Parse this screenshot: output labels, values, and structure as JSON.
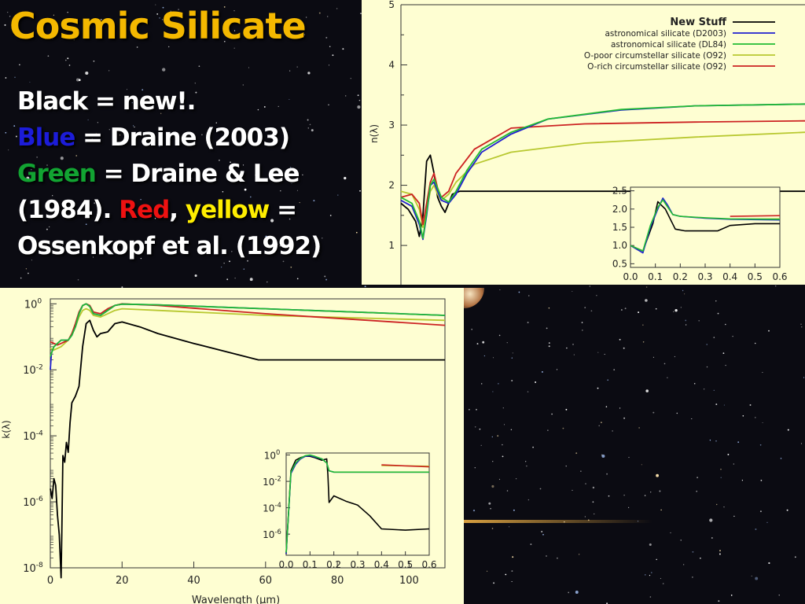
{
  "slide": {
    "title": "Cosmic Silicate",
    "legend": [
      [
        {
          "text": "Black",
          "color": "black-word"
        },
        {
          "text": " = new!.",
          "color": "white"
        }
      ],
      [
        {
          "text": "Blue",
          "color": "blue"
        },
        {
          "text": " = Draine (2003)",
          "color": "white"
        }
      ],
      [
        {
          "text": "Green",
          "color": "green"
        },
        {
          "text": " = Draine & Lee",
          "color": "white"
        }
      ],
      [
        {
          "text": "(1984).  ",
          "color": "white"
        },
        {
          "text": "Red",
          "color": "red"
        },
        {
          "text": ", ",
          "color": "white"
        },
        {
          "text": "yellow",
          "color": "yellow"
        },
        {
          "text": " =",
          "color": "white"
        }
      ],
      [
        {
          "text": "Ossenkopf et al. (1992)",
          "color": "white"
        }
      ]
    ],
    "colors": {
      "title": "#f4b800",
      "background": "#0b0b12",
      "plot_bg": "#fefed2"
    }
  },
  "chart_data": [
    {
      "type": "line",
      "id": "n",
      "ylabel": "n(λ)",
      "xlim": [
        0,
        110
      ],
      "ylim": [
        0.4,
        5
      ],
      "yticks": [
        1,
        2,
        3,
        4,
        5
      ],
      "legend_position": "top-right",
      "series": [
        {
          "name": "New Stuff",
          "color": "#000000",
          "x": [
            0,
            2,
            4,
            5,
            6,
            7,
            8,
            9,
            10,
            11,
            12,
            14,
            16,
            18,
            20,
            30,
            60,
            110
          ],
          "y": [
            1.7,
            1.6,
            1.4,
            1.15,
            1.5,
            2.4,
            2.5,
            2.2,
            1.8,
            1.65,
            1.55,
            1.85,
            1.9,
            1.9,
            1.9,
            1.9,
            1.9,
            1.9
          ]
        },
        {
          "name": "astronomical silicate (D2003)",
          "color": "#2020d0",
          "x": [
            0,
            3,
            5,
            6,
            7,
            8,
            9,
            10,
            11,
            13,
            15,
            18,
            22,
            30,
            40,
            60,
            80,
            110
          ],
          "y": [
            1.75,
            1.65,
            1.35,
            1.1,
            1.5,
            2.0,
            2.05,
            1.9,
            1.75,
            1.7,
            1.85,
            2.2,
            2.55,
            2.85,
            3.1,
            3.25,
            3.32,
            3.35
          ]
        },
        {
          "name": "astronomical silicate (DL84)",
          "color": "#22bb33",
          "x": [
            0,
            3,
            5,
            6,
            7,
            8,
            9,
            10,
            11,
            13,
            15,
            18,
            22,
            30,
            40,
            60,
            80,
            110
          ],
          "y": [
            1.8,
            1.7,
            1.4,
            1.12,
            1.55,
            2.0,
            2.1,
            1.95,
            1.8,
            1.72,
            1.9,
            2.25,
            2.6,
            2.88,
            3.1,
            3.26,
            3.32,
            3.35
          ]
        },
        {
          "name": "O-poor circumstellar silicate (O92)",
          "color": "#b8c830",
          "x": [
            0,
            3,
            5,
            6,
            7,
            8,
            9,
            10,
            11,
            13,
            15,
            20,
            30,
            50,
            80,
            110
          ],
          "y": [
            1.9,
            1.85,
            1.6,
            1.3,
            1.6,
            1.9,
            2.0,
            1.85,
            1.75,
            1.85,
            2.05,
            2.35,
            2.55,
            2.7,
            2.8,
            2.88
          ]
        },
        {
          "name": "O-rich circumstellar silicate (O92)",
          "color": "#cc2222",
          "x": [
            0,
            3,
            5,
            6,
            7,
            8,
            9,
            10,
            11,
            13,
            15,
            20,
            30,
            50,
            80,
            110
          ],
          "y": [
            1.8,
            1.85,
            1.7,
            1.35,
            1.7,
            2.05,
            2.2,
            1.95,
            1.8,
            1.9,
            2.2,
            2.6,
            2.95,
            3.02,
            3.05,
            3.07
          ]
        }
      ],
      "inset": {
        "xlim": [
          0,
          0.6
        ],
        "ylim": [
          0.4,
          2.6
        ],
        "xticks": [
          "0.0",
          "0.1",
          "0.2",
          "0.3",
          "0.4",
          "0.5",
          "0.6"
        ],
        "yticks": [
          "0.5",
          "1.0",
          "1.5",
          "2.0",
          "2.5"
        ],
        "series": [
          {
            "color": "#000000",
            "x": [
              0,
              0.05,
              0.09,
              0.11,
              0.14,
              0.18,
              0.22,
              0.25,
              0.35,
              0.4,
              0.5,
              0.6
            ],
            "y": [
              1.0,
              0.85,
              1.6,
              2.2,
              2.0,
              1.45,
              1.4,
              1.4,
              1.4,
              1.55,
              1.6,
              1.6
            ]
          },
          {
            "color": "#2020d0",
            "x": [
              0,
              0.05,
              0.08,
              0.11,
              0.13,
              0.15,
              0.17,
              0.2,
              0.3,
              0.4,
              0.6
            ],
            "y": [
              1.0,
              0.8,
              1.5,
              2.0,
              2.3,
              2.1,
              1.85,
              1.8,
              1.75,
              1.72,
              1.7
            ]
          },
          {
            "color": "#22bb33",
            "x": [
              0,
              0.05,
              0.08,
              0.11,
              0.13,
              0.15,
              0.17,
              0.2,
              0.3,
              0.4,
              0.6
            ],
            "y": [
              1.0,
              0.85,
              1.55,
              2.05,
              2.25,
              2.05,
              1.85,
              1.8,
              1.76,
              1.73,
              1.72
            ]
          },
          {
            "color": "#b8c830",
            "x": [
              0.4,
              0.6
            ],
            "y": [
              1.72,
              1.73
            ]
          },
          {
            "color": "#cc2222",
            "x": [
              0.4,
              0.6
            ],
            "y": [
              1.8,
              1.82
            ]
          }
        ]
      }
    },
    {
      "type": "line",
      "id": "k",
      "ylabel": "k(λ)",
      "xlabel": "Wavelength (μm)",
      "xlim": [
        0,
        110
      ],
      "ylim_log10": [
        -8,
        0.15
      ],
      "xticks": [
        0,
        20,
        40,
        60,
        80,
        100
      ],
      "yticks": [
        {
          "exp": 0,
          "label": "10",
          "sup": "0"
        },
        {
          "exp": -2,
          "label": "10",
          "sup": "-2"
        },
        {
          "exp": -4,
          "label": "10",
          "sup": "-4"
        },
        {
          "exp": -6,
          "label": "10",
          "sup": "-6"
        },
        {
          "exp": -8,
          "label": "10",
          "sup": "-8"
        }
      ],
      "series": [
        {
          "name": "New Stuff",
          "color": "#000000",
          "x": [
            0,
            0.5,
            1,
            1.5,
            2,
            2.5,
            3,
            3.2,
            3.5,
            4,
            4.5,
            5,
            5.5,
            6,
            7,
            8,
            9,
            10,
            11,
            12,
            13,
            14,
            16,
            18,
            20,
            25,
            30,
            40,
            58,
            70,
            110
          ],
          "y": [
            -5.6,
            -5.9,
            -5.3,
            -5.5,
            -6.4,
            -7.0,
            -8.3,
            -7.0,
            -4.6,
            -4.8,
            -4.2,
            -4.5,
            -3.6,
            -3.0,
            -2.8,
            -2.5,
            -1.3,
            -0.6,
            -0.5,
            -0.8,
            -1.0,
            -0.9,
            -0.85,
            -0.6,
            -0.55,
            -0.7,
            -0.9,
            -1.2,
            -1.7,
            -1.7,
            -1.7
          ]
        },
        {
          "name": "astronomical silicate (D2003)",
          "color": "#2020d0",
          "x": [
            0,
            0.3,
            1,
            2,
            3,
            5,
            6,
            7,
            8,
            9,
            10,
            11,
            12,
            14,
            16,
            18,
            20,
            30,
            60,
            110
          ],
          "y": [
            -2.0,
            -1.5,
            -1.3,
            -1.2,
            -1.1,
            -1.1,
            -0.95,
            -0.7,
            -0.3,
            -0.05,
            0.0,
            -0.08,
            -0.3,
            -0.35,
            -0.2,
            -0.05,
            -0.01,
            -0.03,
            -0.15,
            -0.35
          ]
        },
        {
          "name": "astronomical silicate (DL84)",
          "color": "#22bb33",
          "x": [
            0,
            0.3,
            1,
            2,
            3,
            5,
            6,
            7,
            8,
            9,
            10,
            11,
            12,
            14,
            16,
            18,
            20,
            30,
            60,
            110
          ],
          "y": [
            -1.6,
            -1.5,
            -1.3,
            -1.2,
            -1.1,
            -1.1,
            -0.95,
            -0.7,
            -0.3,
            -0.05,
            0.0,
            -0.08,
            -0.3,
            -0.35,
            -0.2,
            -0.05,
            -0.01,
            -0.03,
            -0.15,
            -0.35
          ]
        },
        {
          "name": "O-poor circumstellar silicate (O92)",
          "color": "#b8c830",
          "x": [
            0,
            1,
            2,
            3,
            5,
            6,
            7,
            8,
            9,
            10,
            11,
            12,
            14,
            16,
            18,
            20,
            30,
            60,
            110
          ],
          "y": [
            -1.35,
            -1.4,
            -1.35,
            -1.3,
            -1.1,
            -0.95,
            -0.7,
            -0.4,
            -0.2,
            -0.15,
            -0.2,
            -0.35,
            -0.4,
            -0.3,
            -0.2,
            -0.15,
            -0.2,
            -0.35,
            -0.5
          ]
        },
        {
          "name": "O-rich circumstellar silicate (O92)",
          "color": "#cc2222",
          "x": [
            0,
            1,
            2,
            3,
            5,
            6,
            7,
            8,
            9,
            10,
            11,
            12,
            14,
            16,
            18,
            20,
            30,
            60,
            110
          ],
          "y": [
            -1.15,
            -1.2,
            -1.25,
            -1.2,
            -1.1,
            -0.9,
            -0.6,
            -0.25,
            -0.05,
            0.0,
            -0.05,
            -0.25,
            -0.3,
            -0.15,
            -0.05,
            0.0,
            -0.05,
            -0.3,
            -0.65
          ]
        }
      ],
      "inset": {
        "xlim": [
          0,
          0.6
        ],
        "ylim_log10": [
          -7.6,
          0.15
        ],
        "xticks": [
          "0.0",
          "0.1",
          "0.2",
          "0.3",
          "0.4",
          "0.5",
          "0.6"
        ],
        "yticks": [
          {
            "exp": 0,
            "label": "10",
            "sup": "0"
          },
          {
            "exp": -2,
            "label": "10",
            "sup": "-2"
          },
          {
            "exp": -4,
            "label": "10",
            "sup": "-4"
          },
          {
            "exp": -6,
            "label": "10",
            "sup": "-6"
          }
        ],
        "series": [
          {
            "color": "#000000",
            "x": [
              0,
              0.02,
              0.04,
              0.06,
              0.08,
              0.1,
              0.12,
              0.15,
              0.17,
              0.175,
              0.18,
              0.2,
              0.25,
              0.3,
              0.35,
              0.4,
              0.5,
              0.6
            ],
            "y": [
              -7.5,
              -1.2,
              -0.4,
              -0.2,
              -0.1,
              -0.1,
              -0.2,
              -0.4,
              -0.3,
              -1.5,
              -3.6,
              -3.1,
              -3.5,
              -3.8,
              -4.6,
              -5.6,
              -5.7,
              -5.6
            ]
          },
          {
            "color": "#2020d0",
            "x": [
              0,
              0.02,
              0.04,
              0.06,
              0.08,
              0.1,
              0.12,
              0.15,
              0.17,
              0.18,
              0.2,
              0.3,
              0.4,
              0.5,
              0.6
            ],
            "y": [
              -7.5,
              -1.4,
              -0.7,
              -0.3,
              -0.1,
              -0.05,
              -0.15,
              -0.3,
              -0.6,
              -1.2,
              -1.3,
              -1.3,
              -1.3,
              -1.3,
              -1.3
            ]
          },
          {
            "color": "#22bb33",
            "x": [
              0,
              0.02,
              0.04,
              0.06,
              0.08,
              0.1,
              0.12,
              0.15,
              0.17,
              0.18,
              0.2,
              0.3,
              0.4,
              0.5,
              0.6
            ],
            "y": [
              -7.4,
              -1.3,
              -0.6,
              -0.25,
              -0.05,
              0.0,
              -0.1,
              -0.3,
              -0.6,
              -1.2,
              -1.3,
              -1.3,
              -1.3,
              -1.3,
              -1.3
            ]
          },
          {
            "color": "#b8c830",
            "x": [
              0.4,
              0.6
            ],
            "y": [
              -0.8,
              -0.85
            ]
          },
          {
            "color": "#cc2222",
            "x": [
              0.4,
              0.6
            ],
            "y": [
              -0.75,
              -0.9
            ]
          }
        ]
      }
    }
  ]
}
